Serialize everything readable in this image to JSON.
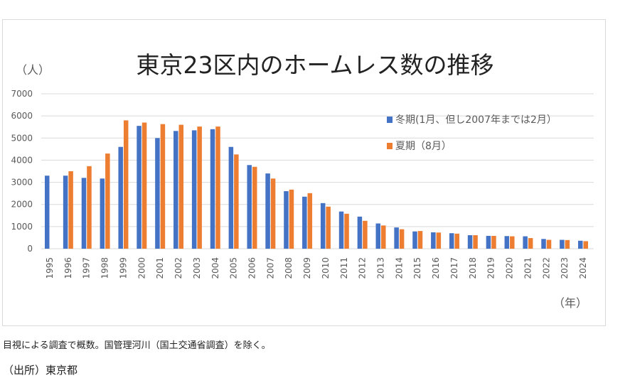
{
  "chart_data": {
    "type": "bar",
    "title": "東京23区内のホームレス数の推移",
    "ylabel": "（人）",
    "xlabel": "（年）",
    "ylim": [
      0,
      7000
    ],
    "yticks": [
      0,
      1000,
      2000,
      3000,
      4000,
      5000,
      6000,
      7000
    ],
    "grid": true,
    "legend_position": "right",
    "categories": [
      "1995",
      "1996",
      "1997",
      "1998",
      "1999",
      "2000",
      "2001",
      "2002",
      "2003",
      "2004",
      "2005",
      "2006",
      "2007",
      "2008",
      "2009",
      "2010",
      "2011",
      "2012",
      "2013",
      "2014",
      "2015",
      "2016",
      "2017",
      "2018",
      "2019",
      "2020",
      "2021",
      "2022",
      "2023",
      "2024"
    ],
    "series": [
      {
        "name": "冬期(1月、但し2007年までは2月）",
        "color": "#4472c4",
        "values": [
          3300,
          3300,
          3200,
          3170,
          4600,
          5550,
          5000,
          5320,
          5350,
          5400,
          4600,
          3780,
          3400,
          2600,
          2350,
          2060,
          1680,
          1450,
          1140,
          960,
          780,
          740,
          700,
          610,
          580,
          570,
          560,
          440,
          400,
          360
        ]
      },
      {
        "name": "夏期（8月）",
        "color": "#ed7d31",
        "values": [
          null,
          3500,
          3730,
          4300,
          5800,
          5700,
          5630,
          5600,
          5520,
          5520,
          4260,
          3700,
          3170,
          2670,
          2510,
          1900,
          1580,
          1260,
          1050,
          880,
          800,
          730,
          680,
          610,
          580,
          560,
          480,
          400,
          390,
          340
        ]
      }
    ]
  },
  "note": "目視による調査で概数。国管理河川（国土交通省調査）を除く。",
  "source": "（出所）東京都"
}
